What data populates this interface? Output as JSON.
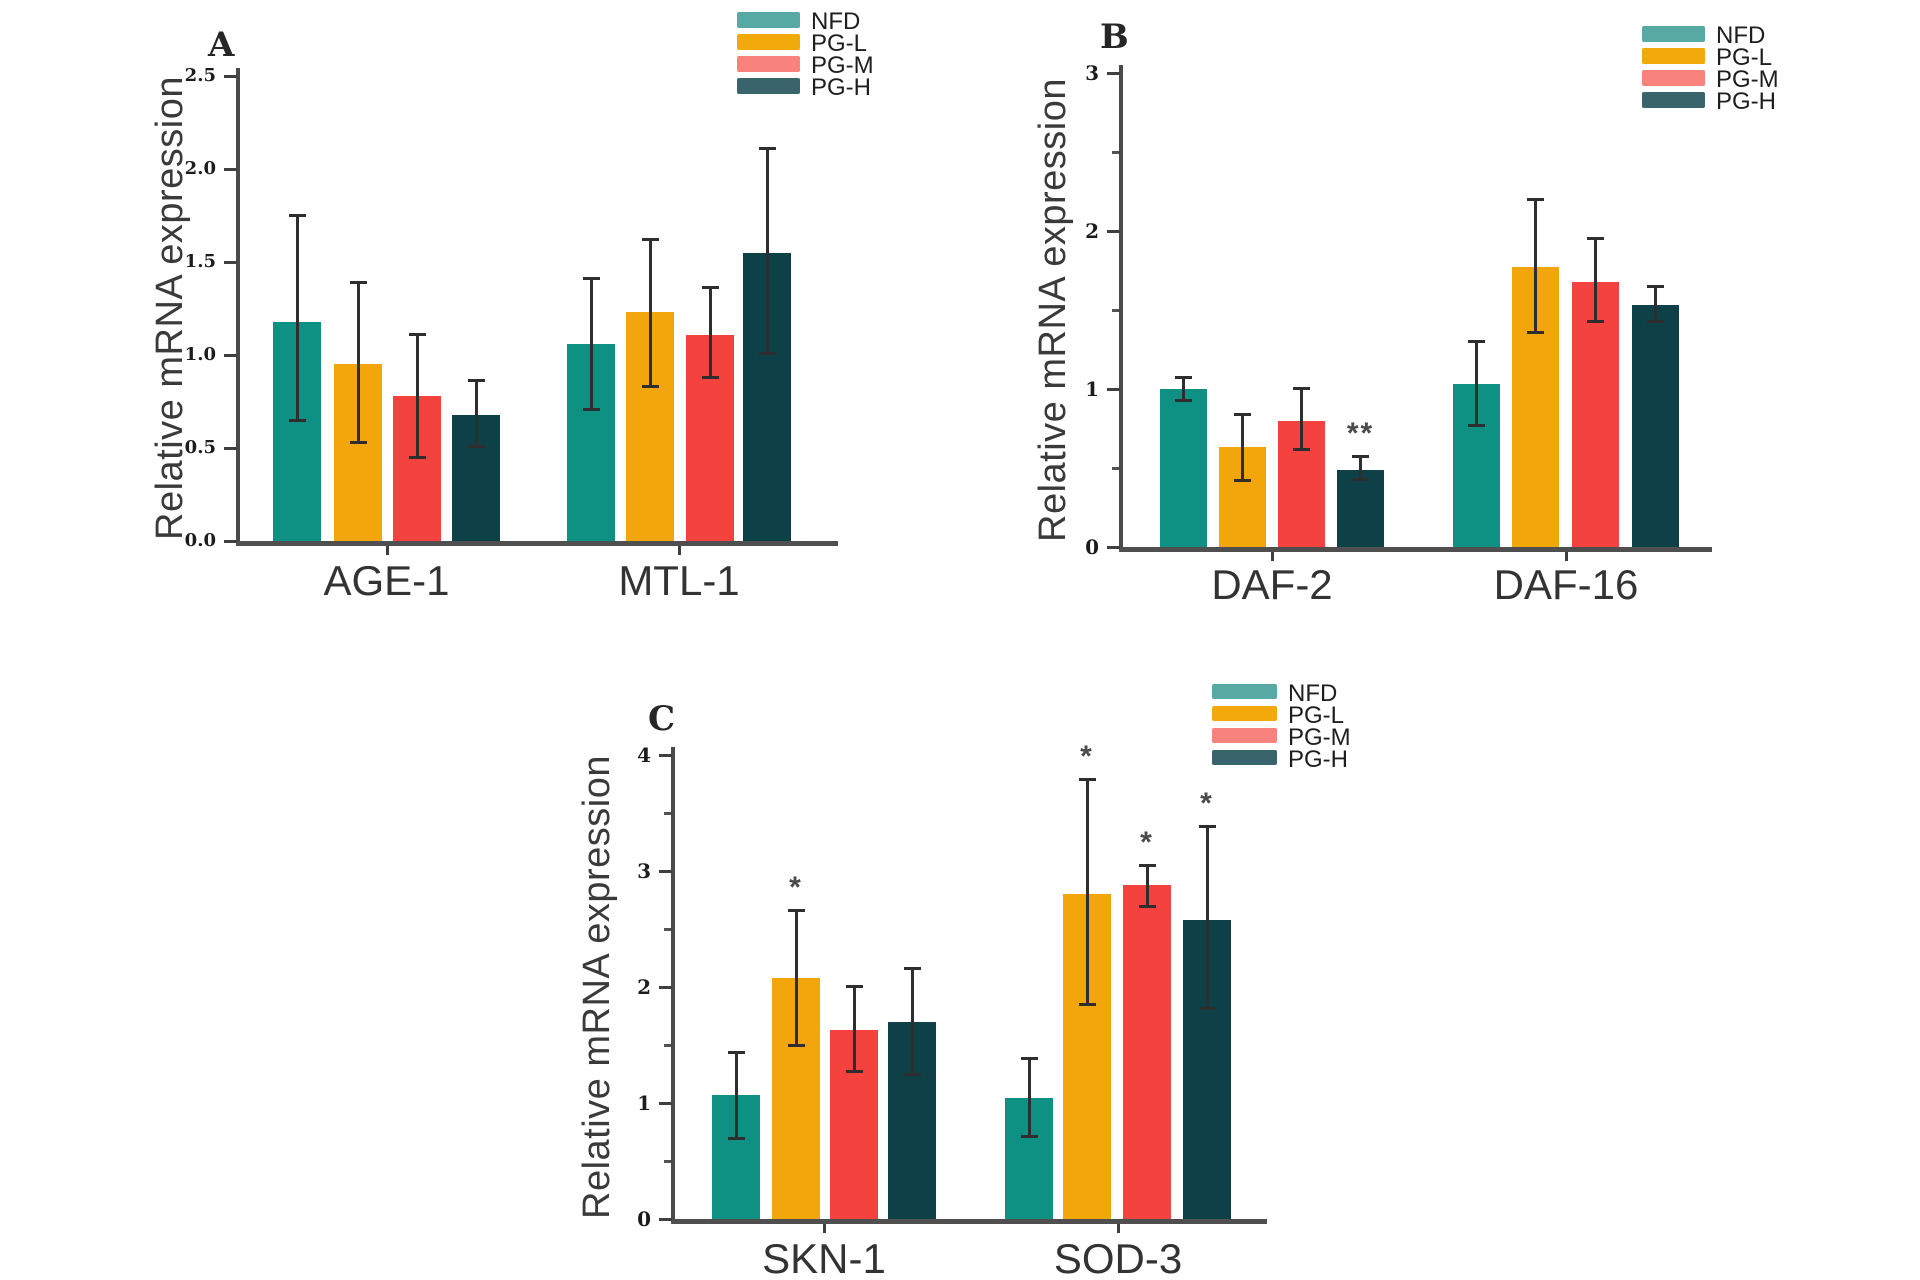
{
  "figure": {
    "y_axis_title": "Relative mRNA expression",
    "background": "#ffffff"
  },
  "legend": {
    "position": "top-right-of-each-panel",
    "entries": [
      {
        "label": "NFD",
        "swatch_color": "#56aaa3",
        "bar_color": "#0e9083"
      },
      {
        "label": "PG-L",
        "swatch_color": "#f2a90b",
        "bar_color": "#f3a60b"
      },
      {
        "label": "PG-M",
        "swatch_color": "#f8837d",
        "bar_color": "#f4423f"
      },
      {
        "label": "PG-H",
        "swatch_color": "#3a646b",
        "bar_color": "#0d4147"
      }
    ]
  },
  "chart_data": [
    {
      "type": "bar",
      "panel": "A",
      "ylabel": "Relative mRNA expression",
      "xlabel": "",
      "ylim": [
        0,
        2.5
      ],
      "ytick_values": [
        0,
        0.5,
        1.0,
        1.5,
        2.0,
        2.5
      ],
      "ytick_labels": [
        "0.0",
        "0.5",
        "1.0",
        "1.5",
        "2.0",
        "2.5"
      ],
      "ytick_minor": [],
      "grid": false,
      "series": [
        "NFD",
        "PG-L",
        "PG-M",
        "PG-H"
      ],
      "groups": [
        {
          "label": "AGE-1",
          "values": [
            1.18,
            0.95,
            0.78,
            0.68
          ],
          "err_lo": [
            0.64,
            0.52,
            0.44,
            0.5
          ],
          "err_hi": [
            1.76,
            1.4,
            1.12,
            0.87
          ],
          "sig": [
            "",
            "",
            "",
            ""
          ]
        },
        {
          "label": "MTL-1",
          "values": [
            1.06,
            1.23,
            1.11,
            1.55
          ],
          "err_lo": [
            0.7,
            0.82,
            0.87,
            1.0
          ],
          "err_hi": [
            1.42,
            1.63,
            1.37,
            2.12
          ],
          "sig": [
            "",
            "",
            "",
            ""
          ]
        }
      ]
    },
    {
      "type": "bar",
      "panel": "B",
      "ylabel": "Relative mRNA expression",
      "xlabel": "",
      "ylim": [
        0,
        3
      ],
      "ytick_values": [
        0,
        1,
        2,
        3
      ],
      "ytick_labels": [
        "0",
        "1",
        "2",
        "3"
      ],
      "ytick_minor": [
        0.5,
        1.5,
        2.5
      ],
      "grid": false,
      "series": [
        "NFD",
        "PG-L",
        "PG-M",
        "PG-H"
      ],
      "groups": [
        {
          "label": "DAF-2",
          "values": [
            1.0,
            0.63,
            0.8,
            0.49
          ],
          "err_lo": [
            0.92,
            0.41,
            0.61,
            0.42
          ],
          "err_hi": [
            1.08,
            0.85,
            1.01,
            0.58
          ],
          "sig": [
            "",
            "",
            "",
            "**"
          ]
        },
        {
          "label": "DAF-16",
          "values": [
            1.03,
            1.77,
            1.68,
            1.53
          ],
          "err_lo": [
            0.76,
            1.35,
            1.42,
            1.42
          ],
          "err_hi": [
            1.31,
            2.21,
            1.96,
            1.66
          ],
          "sig": [
            "",
            "",
            "",
            ""
          ]
        }
      ]
    },
    {
      "type": "bar",
      "panel": "C",
      "ylabel": "Relative mRNA expression",
      "xlabel": "",
      "ylim": [
        0,
        4
      ],
      "ytick_values": [
        0,
        1,
        2,
        3,
        4
      ],
      "ytick_labels": [
        "0",
        "1",
        "2",
        "3",
        "4"
      ],
      "ytick_minor": [
        0.5,
        1.5,
        2.5,
        3.5
      ],
      "grid": false,
      "series": [
        "NFD",
        "PG-L",
        "PG-M",
        "PG-H"
      ],
      "groups": [
        {
          "label": "SKN-1",
          "values": [
            1.07,
            2.08,
            1.63,
            1.7
          ],
          "err_lo": [
            0.68,
            1.48,
            1.26,
            1.23
          ],
          "err_hi": [
            1.45,
            2.67,
            2.02,
            2.17
          ],
          "sig": [
            "",
            "*",
            "",
            ""
          ]
        },
        {
          "label": "SOD-3",
          "values": [
            1.04,
            2.8,
            2.88,
            2.58
          ],
          "err_lo": [
            0.7,
            1.84,
            2.68,
            1.8
          ],
          "err_hi": [
            1.4,
            3.8,
            3.06,
            3.4
          ],
          "sig": [
            "",
            "*",
            "*",
            "*"
          ]
        }
      ]
    }
  ]
}
